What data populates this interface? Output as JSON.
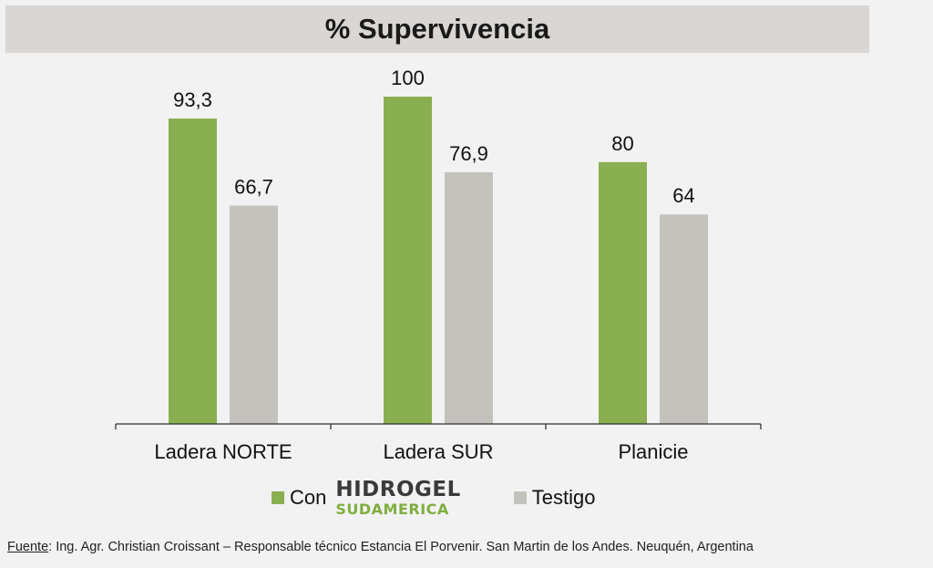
{
  "chart_data": {
    "type": "bar",
    "title": "% Supervivencia",
    "categories": [
      "Ladera NORTE",
      "Ladera SUR",
      "Planicie"
    ],
    "series": [
      {
        "name": "Con HIDROGEL SUDAMERICA",
        "values": [
          93.3,
          100,
          80
        ],
        "labels": [
          "93,3",
          "100",
          "80"
        ],
        "color": "#8aaf50"
      },
      {
        "name": "Testigo",
        "values": [
          66.7,
          76.9,
          64
        ],
        "labels": [
          "66,7",
          "76,9",
          "64"
        ],
        "color": "#c4c2bd"
      }
    ],
    "ylim": [
      0,
      100
    ],
    "grid": false,
    "legend": "bottom"
  },
  "legend": {
    "con_label": "Con",
    "logo_top": "HIDROGEL",
    "logo_bottom": "SUDAMERICA",
    "testigo_label": "Testigo"
  },
  "footer": {
    "label": "Fuente",
    "text": ": Ing. Agr. Christian Croissant – Responsable técnico Estancia El Porvenir. San Martin de los Andes. Neuquén, Argentina"
  },
  "colors": {
    "background": "#f2f2f2",
    "title_bar": "#d9d6d3",
    "green": "#8aaf50",
    "grey": "#c4c2bd",
    "logo_green": "#7fae3f"
  }
}
